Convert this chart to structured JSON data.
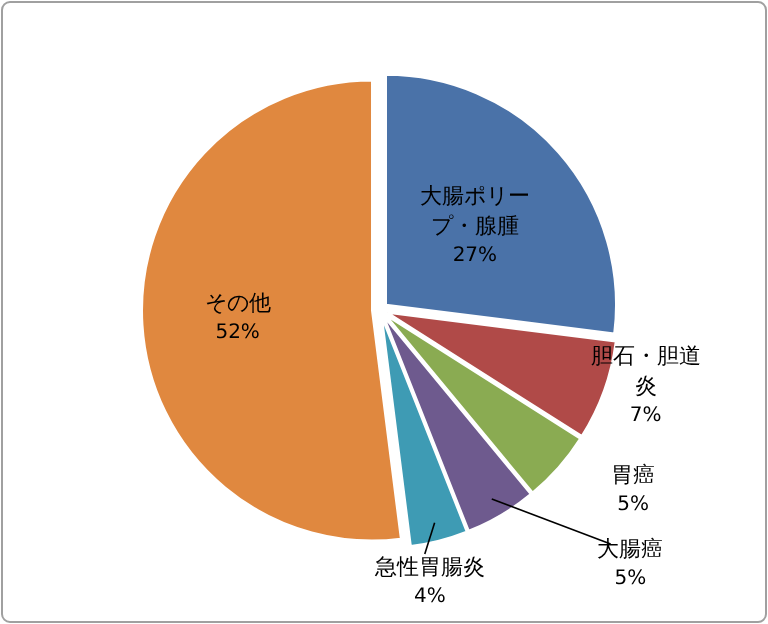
{
  "chart_data": {
    "type": "pie",
    "categories": [
      "大腸ポリープ・腺腫",
      "胆石・胆道炎",
      "胃癌",
      "大腸癌",
      "急性胃腸炎",
      "その他"
    ],
    "values": [
      27,
      7,
      5,
      5,
      4,
      52
    ],
    "colors": [
      "#4a72a8",
      "#b04a48",
      "#8aab52",
      "#6e5a8e",
      "#3e9bb4",
      "#e0883f"
    ],
    "value_labels": [
      "27%",
      "7%",
      "5%",
      "5%",
      "4%",
      "52%"
    ]
  }
}
